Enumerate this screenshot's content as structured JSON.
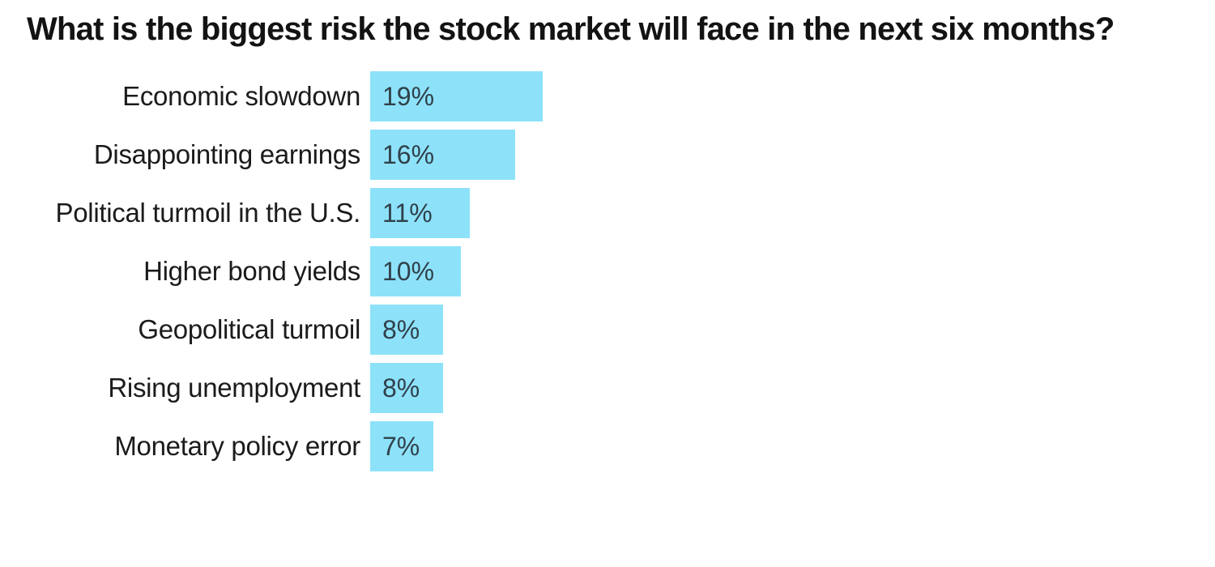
{
  "page": {
    "background": "#ffffff"
  },
  "chart_data": {
    "type": "bar",
    "orientation": "horizontal",
    "title": "What is the biggest risk the stock market will face in the next six months?",
    "categories": [
      "Economic slowdown",
      "Disappointing earnings",
      "Political turmoil in the U.S.",
      "Higher bond yields",
      "Geopolitical turmoil",
      "Rising unemployment",
      "Monetary policy error"
    ],
    "values": [
      19,
      16,
      11,
      10,
      8,
      8,
      7
    ],
    "value_labels": [
      "19%",
      "16%",
      "11%",
      "10%",
      "8%",
      "8%",
      "7%"
    ],
    "unit": "%",
    "xlim": [
      0,
      19
    ],
    "grid": "off",
    "legend": "none",
    "axis_ticks": "none",
    "bar_color": "#8DE2FA",
    "value_label_color": "#30404a",
    "category_label_color": "#1b1b1b",
    "title_color": "#131313"
  }
}
